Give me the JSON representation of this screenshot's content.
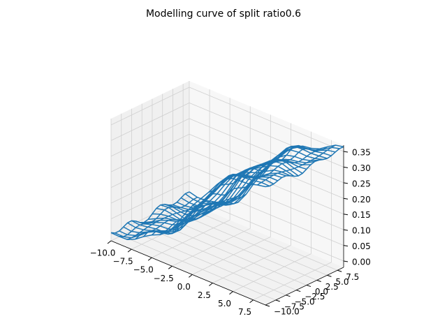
{
  "chart_data": {
    "type": "wireframe",
    "title": "Modelling curve of split ratio0.6",
    "xlabel": "",
    "ylabel": "",
    "zlabel": "",
    "xlim": [
      -10,
      9
    ],
    "ylim": [
      -10,
      9
    ],
    "zlim": [
      -0.02,
      0.37
    ],
    "x_ticks": [
      "−10.0",
      "−7.5",
      "−5.0",
      "−2.5",
      "0.0",
      "2.5",
      "5.0",
      "7.5"
    ],
    "y_ticks": [
      "−10.0",
      "−7.5",
      "−5.0",
      "−2.5",
      "0.0",
      "2.5",
      "5.0",
      "7.5"
    ],
    "z_ticks": [
      "0.00",
      "0.05",
      "0.10",
      "0.15",
      "0.20",
      "0.25",
      "0.30",
      "0.35"
    ],
    "x_tick_values": [
      -10,
      -7.5,
      -5,
      -2.5,
      0,
      2.5,
      5,
      7.5
    ],
    "y_tick_values": [
      -10,
      -7.5,
      -5,
      -2.5,
      0,
      2.5,
      5,
      7.5
    ],
    "z_tick_values": [
      0,
      0.05,
      0.1,
      0.15,
      0.2,
      0.25,
      0.3,
      0.35
    ],
    "grid": true,
    "series_color": "#1f77b4",
    "surface": {
      "x_start": -10,
      "x_end": 9,
      "x_count": 20,
      "y_start": -10,
      "y_end": 9,
      "y_count": 20,
      "z_min": 0.0,
      "z_max": 0.36,
      "description_of_shape": "sigmoid-like rise along x with slight wave in y"
    }
  }
}
